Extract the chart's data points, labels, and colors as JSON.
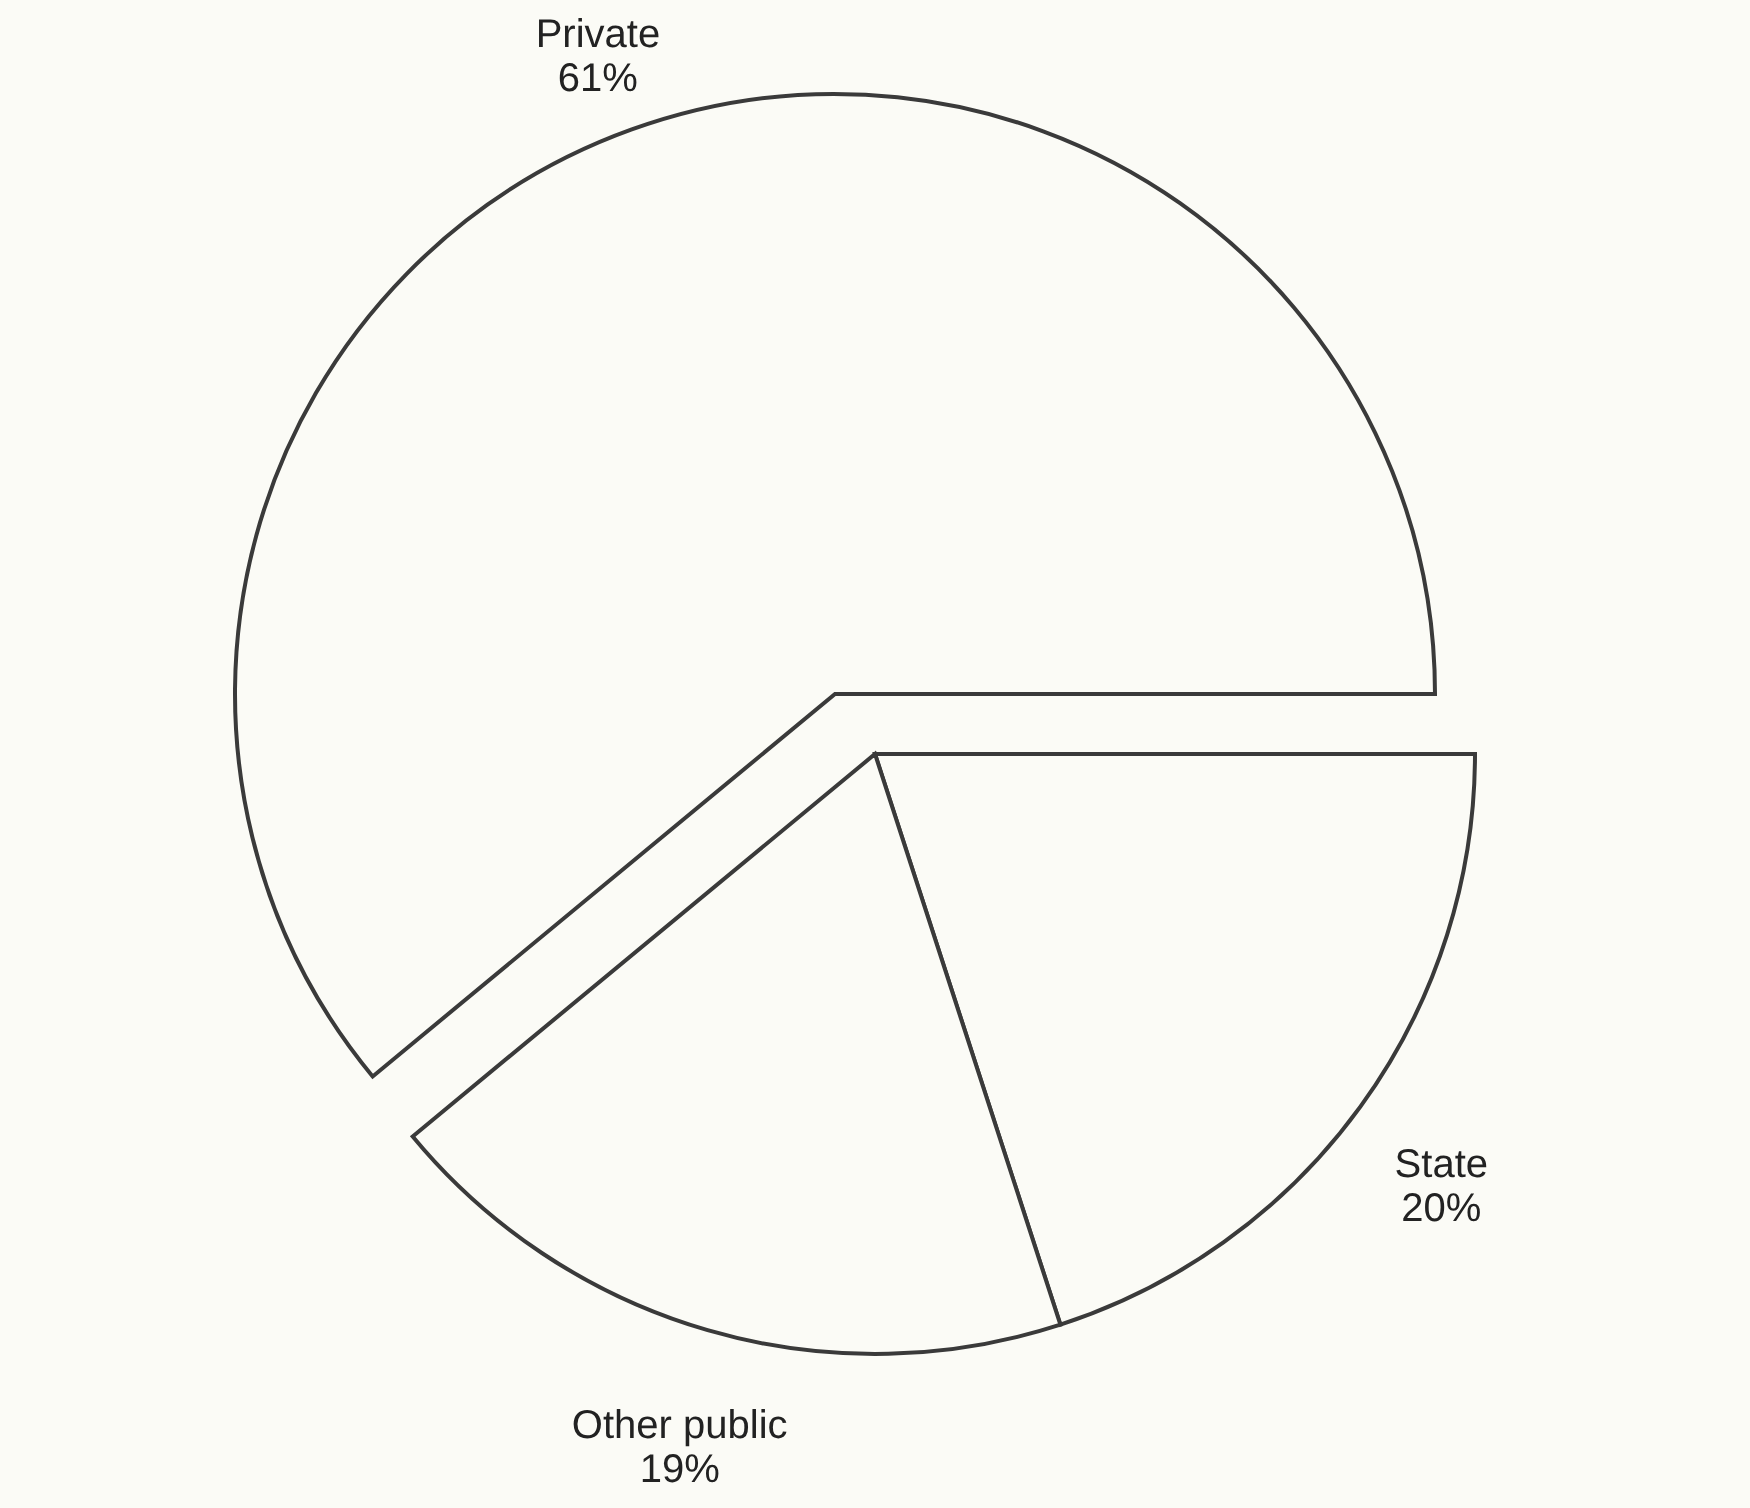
{
  "chart_data": {
    "type": "pie",
    "categories": [
      "State",
      "Other public",
      "Private"
    ],
    "values": [
      20,
      19,
      61
    ],
    "value_labels": [
      "20%",
      "19%",
      "61%"
    ],
    "colors": [
      "#fbfbf6",
      "#fbfbf6",
      "#fbfbf6"
    ]
  }
}
